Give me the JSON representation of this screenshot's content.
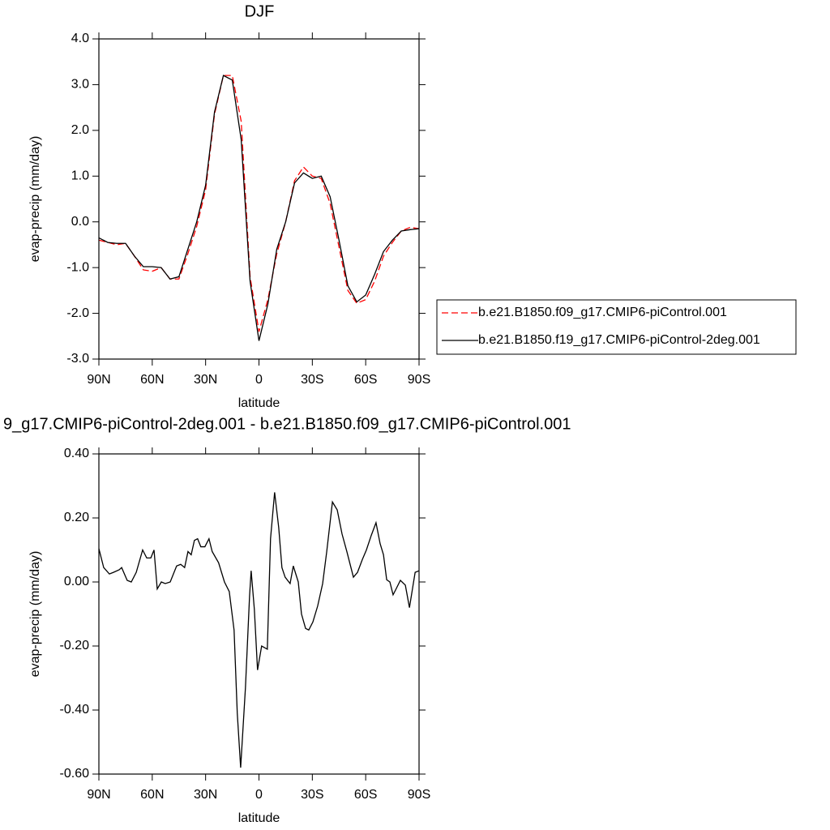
{
  "chart_data": [
    {
      "type": "line",
      "title": "DJF",
      "x_label": "latitude",
      "y_label": "evap-precip (mm/day)",
      "x": [
        90,
        85,
        80,
        75,
        70,
        65,
        60,
        55,
        50,
        45,
        40,
        35,
        30,
        25,
        20,
        15,
        10,
        5,
        0,
        -5,
        -10,
        -15,
        -20,
        -25,
        -30,
        -35,
        -40,
        -45,
        -50,
        -55,
        -60,
        -65,
        -70,
        -75,
        -80,
        -85,
        -90
      ],
      "series": [
        {
          "name": "b.e21.B1850.f09_g17.CMIP6-piControl.001",
          "color": "#ff0000",
          "line_style": "dashed",
          "values": [
            -0.4,
            -0.45,
            -0.5,
            -0.47,
            -0.75,
            -1.05,
            -1.08,
            -1.0,
            -1.25,
            -1.25,
            -0.7,
            -0.1,
            0.7,
            2.35,
            3.2,
            3.2,
            2.2,
            -1.2,
            -2.4,
            -1.7,
            -0.7,
            0.0,
            0.9,
            1.2,
            1.0,
            0.95,
            0.4,
            -0.55,
            -1.5,
            -1.78,
            -1.7,
            -1.3,
            -0.75,
            -0.45,
            -0.2,
            -0.12,
            -0.15
          ]
        },
        {
          "name": "b.e21.B1850.f19_g17.CMIP6-piControl-2deg.001",
          "color": "#000000",
          "line_style": "solid",
          "values": [
            -0.35,
            -0.45,
            -0.47,
            -0.47,
            -0.75,
            -0.98,
            -0.98,
            -1.0,
            -1.25,
            -1.2,
            -0.6,
            0.0,
            0.8,
            2.4,
            3.2,
            3.1,
            1.8,
            -1.3,
            -2.6,
            -1.8,
            -0.6,
            0.0,
            0.85,
            1.07,
            0.95,
            1.0,
            0.55,
            -0.4,
            -1.4,
            -1.75,
            -1.6,
            -1.15,
            -0.65,
            -0.4,
            -0.2,
            -0.17,
            -0.15
          ]
        }
      ],
      "xlim": [
        90,
        -90
      ],
      "xticks": [
        {
          "value": 90,
          "label": "90N"
        },
        {
          "value": 60,
          "label": "60N"
        },
        {
          "value": 30,
          "label": "30N"
        },
        0,
        {
          "value": -30,
          "label": "30S"
        },
        {
          "value": -60,
          "label": "60S"
        },
        {
          "value": -90,
          "label": "90S"
        }
      ],
      "ylim": [
        -3,
        4
      ],
      "yticks": [
        {
          "value": -3,
          "label": "-3.0"
        },
        {
          "value": -2,
          "label": "-2.0"
        },
        {
          "value": -1,
          "label": "-1.0"
        },
        {
          "value": 0,
          "label": "0.0"
        },
        {
          "value": 1,
          "label": "1.0"
        },
        {
          "value": 2,
          "label": "2.0"
        },
        {
          "value": 3,
          "label": "3.0"
        },
        {
          "value": 4,
          "label": "4.0"
        }
      ],
      "legend": "right"
    },
    {
      "type": "line",
      "title": "9_g17.CMIP6-piControl-2deg.001 - b.e21.B1850.f09_g17.CMIP6-piControl.001",
      "x_label": "latitude",
      "y_label": "evap-precip (mm/day)",
      "x": [
        90,
        87.3,
        84.1,
        81.8,
        78.6,
        77.2,
        74.1,
        71.8,
        69.0,
        65.4,
        63.1,
        60.8,
        59.0,
        57.2,
        54.9,
        52.7,
        49.9,
        46.3,
        44.0,
        41.8,
        39.9,
        38.1,
        36.3,
        34.5,
        32.7,
        30.4,
        28.1,
        26.3,
        22.7,
        19.4,
        16.7,
        14.0,
        12.2,
        10.3,
        7.6,
        5.3,
        4.4,
        2.6,
        0.8,
        -1.5,
        -4.7,
        -6.5,
        -8.8,
        -11.1,
        -12.9,
        -14.7,
        -17.5,
        -19.3,
        -22.1,
        -23.9,
        -26.2,
        -28.0,
        -30.3,
        -33.0,
        -35.8,
        -38.1,
        -41.3,
        -44.0,
        -46.7,
        -49.4,
        -53.1,
        -55.4,
        -58.1,
        -60.4,
        -63.1,
        -65.8,
        -68.1,
        -70.0,
        -71.8,
        -73.6,
        -75.4,
        -76.8,
        -79.5,
        -82.3,
        -84.6,
        -87.8,
        -90
      ],
      "series": [
        {
          "color": "#000000",
          "line_style": "solid",
          "values": [
            0.104,
            0.045,
            0.025,
            0.03,
            0.038,
            0.045,
            0.005,
            0.0,
            0.03,
            0.1,
            0.075,
            0.075,
            0.1,
            -0.022,
            0.0,
            -0.005,
            0.0,
            0.05,
            0.055,
            0.045,
            0.095,
            0.085,
            0.13,
            0.135,
            0.11,
            0.11,
            0.135,
            0.095,
            0.06,
            0.0,
            -0.03,
            -0.15,
            -0.41,
            -0.58,
            -0.33,
            -0.045,
            0.035,
            -0.085,
            -0.275,
            -0.2,
            -0.21,
            0.135,
            0.28,
            0.17,
            0.045,
            0.015,
            -0.005,
            0.05,
            0.0,
            -0.1,
            -0.145,
            -0.15,
            -0.125,
            -0.075,
            -0.005,
            0.095,
            0.25,
            0.225,
            0.15,
            0.095,
            0.015,
            0.03,
            0.07,
            0.1,
            0.145,
            0.185,
            0.12,
            0.085,
            0.007,
            0.0,
            -0.04,
            -0.025,
            0.005,
            -0.01,
            -0.08,
            0.03,
            0.035
          ]
        }
      ],
      "xlim": [
        90,
        -90
      ],
      "xticks": [
        {
          "value": 90,
          "label": "90N"
        },
        {
          "value": 60,
          "label": "60N"
        },
        {
          "value": 30,
          "label": "30N"
        },
        0,
        {
          "value": -30,
          "label": "30S"
        },
        {
          "value": -60,
          "label": "60S"
        },
        {
          "value": -90,
          "label": "90S"
        }
      ],
      "ylim": [
        -0.6,
        0.4
      ],
      "yticks": [
        {
          "value": -0.6,
          "label": "-0.60"
        },
        {
          "value": -0.4,
          "label": "-0.40"
        },
        {
          "value": -0.2,
          "label": "-0.20"
        },
        {
          "value": 0,
          "label": "0.00"
        },
        {
          "value": 0.2,
          "label": "0.20"
        },
        {
          "value": 0.4,
          "label": "0.40"
        }
      ]
    }
  ]
}
